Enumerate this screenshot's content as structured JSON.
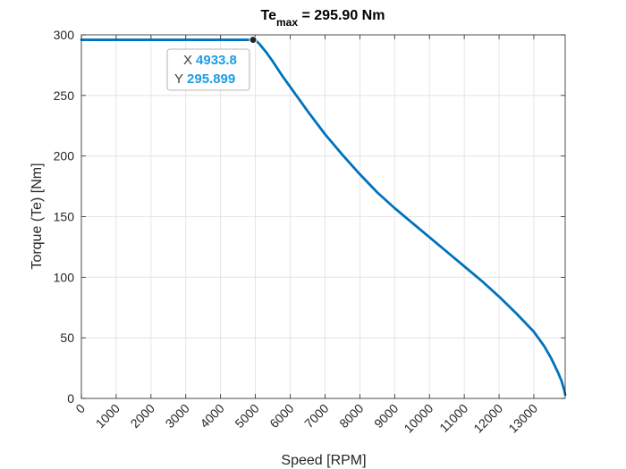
{
  "chart_data": {
    "type": "line",
    "title": {
      "main": "Te",
      "sub": "max",
      "rest": " = 295.90 Nm"
    },
    "xlabel": "Speed [RPM]",
    "ylabel": "Torque (Te) [Nm]",
    "xlim": [
      0,
      13900
    ],
    "ylim": [
      0,
      300
    ],
    "xticks": [
      0,
      1000,
      2000,
      3000,
      4000,
      5000,
      6000,
      7000,
      8000,
      9000,
      10000,
      11000,
      12000,
      13000
    ],
    "xtick_labels": [
      "0",
      "1000",
      "2000",
      "3000",
      "4000",
      "5000",
      "6000",
      "7000",
      "8000",
      "9000",
      "10000",
      "11000",
      "12000",
      "13000"
    ],
    "yticks": [
      0,
      50,
      100,
      150,
      200,
      250,
      300
    ],
    "ytick_labels": [
      "0",
      "50",
      "100",
      "150",
      "200",
      "250",
      "300"
    ],
    "grid": true,
    "line_color": "#0072bd",
    "series": [
      {
        "x": [
          0,
          1000,
          2000,
          3000,
          4000,
          4933.8,
          5000,
          5100,
          5300,
          5500,
          5800,
          6000,
          6500,
          7000,
          7500,
          8000,
          8500,
          9000,
          9500,
          10000,
          10500,
          11000,
          11500,
          12000,
          12500,
          13000,
          13300,
          13500,
          13700,
          13800,
          13850,
          13880,
          13900
        ],
        "y": [
          295.899,
          295.899,
          295.899,
          295.899,
          295.899,
          295.899,
          295.5,
          293,
          286,
          278,
          265,
          257,
          237,
          218,
          201,
          185,
          170,
          157,
          145,
          133,
          121,
          109,
          97,
          84,
          70,
          55,
          43,
          33,
          21,
          14,
          9,
          6,
          3
        ]
      }
    ],
    "datatip": {
      "x": 4933.8,
      "y": 295.899,
      "x_label": "X",
      "y_label": "Y",
      "x_text": "4933.8",
      "y_text": "295.899"
    }
  }
}
